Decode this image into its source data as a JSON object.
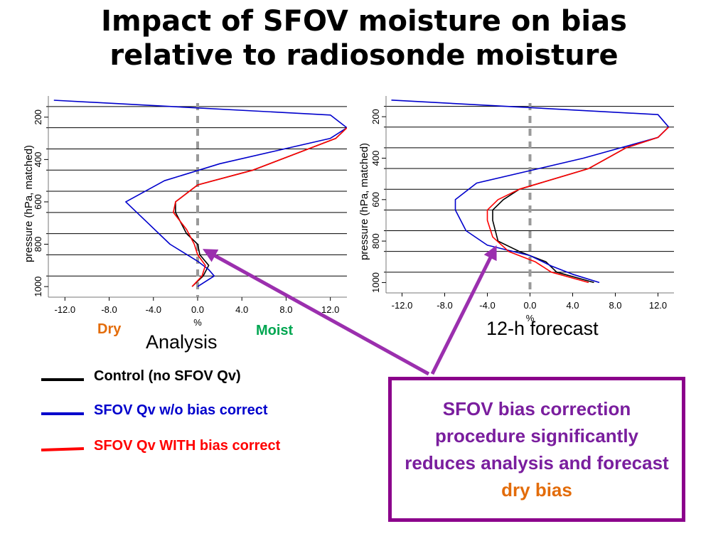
{
  "title": {
    "line1": "Impact of SFOV moisture on bias",
    "line2": "relative to radiosonde moisture"
  },
  "chart_data": [
    {
      "type": "line",
      "title": "Analysis",
      "xlabel": "%",
      "ylabel": "pressure (hPa, matched)",
      "xlim": [
        -13.5,
        13.5
      ],
      "ylim": [
        1050,
        100
      ],
      "x_ticks": [
        "-12.0",
        "-8.0",
        "-4.0",
        "0.0",
        "4.0",
        "8.0",
        "12.0"
      ],
      "y_ticks": [
        "200",
        "400",
        "600",
        "800",
        "1000"
      ],
      "grid": "horizontal lines every 100 hPa",
      "reference_line": 0,
      "annotations": {
        "left": "Dry",
        "right": "Moist"
      },
      "series": [
        {
          "name": "Control  (no SFOV Qv)",
          "color": "#000000",
          "points": [
            [
              13.5,
              250
            ],
            [
              12.5,
              300
            ],
            [
              10,
              350
            ],
            [
              5,
              450
            ],
            [
              0,
              520
            ],
            [
              -2,
              600
            ],
            [
              -2,
              650
            ],
            [
              -1,
              750
            ],
            [
              0,
              800
            ],
            [
              0.2,
              850
            ],
            [
              1,
              900
            ],
            [
              0.5,
              950
            ],
            [
              -0.5,
              1000
            ]
          ]
        },
        {
          "name": "SFOV Qv  w/o bias correct",
          "color": "#0000cc",
          "points": [
            [
              -13,
              120
            ],
            [
              12,
              190
            ],
            [
              13.5,
              250
            ],
            [
              12,
              300
            ],
            [
              2,
              420
            ],
            [
              -3,
              500
            ],
            [
              -6.5,
              600
            ],
            [
              -4.5,
              700
            ],
            [
              -2.5,
              800
            ],
            [
              0,
              880
            ],
            [
              1,
              920
            ],
            [
              1.5,
              950
            ],
            [
              0,
              1000
            ]
          ]
        },
        {
          "name": "SFOV Qv WITH bias correct",
          "color": "#ff0000",
          "points": [
            [
              13.5,
              250
            ],
            [
              12.5,
              300
            ],
            [
              10,
              350
            ],
            [
              5,
              450
            ],
            [
              0,
              520
            ],
            [
              -2,
              600
            ],
            [
              -2.2,
              650
            ],
            [
              -1,
              730
            ],
            [
              -0.3,
              800
            ],
            [
              0,
              850
            ],
            [
              0.7,
              900
            ],
            [
              0.4,
              950
            ],
            [
              -0.5,
              1000
            ]
          ]
        }
      ]
    },
    {
      "type": "line",
      "title": "12-h forecast",
      "xlabel": "%",
      "ylabel": "pressure (hPa, matched)",
      "xlim": [
        -13.5,
        13.5
      ],
      "ylim": [
        1050,
        100
      ],
      "x_ticks": [
        "-12.0",
        "-8.0",
        "-4.0",
        "0.0",
        "4.0",
        "8.0",
        "12.0"
      ],
      "y_ticks": [
        "200",
        "400",
        "600",
        "800",
        "1000"
      ],
      "grid": "horizontal lines every 100 hPa",
      "reference_line": 0,
      "series": [
        {
          "name": "Control  (no SFOV Qv)",
          "color": "#000000",
          "points": [
            [
              13,
              250
            ],
            [
              12,
              300
            ],
            [
              9,
              350
            ],
            [
              5.5,
              450
            ],
            [
              -1,
              550
            ],
            [
              -2.5,
              600
            ],
            [
              -3.5,
              650
            ],
            [
              -3.5,
              700
            ],
            [
              -3,
              800
            ],
            [
              -1,
              850
            ],
            [
              1.5,
              900
            ],
            [
              2.5,
              950
            ],
            [
              6,
              1000
            ]
          ]
        },
        {
          "name": "SFOV Qv  w/o bias correct",
          "color": "#0000cc",
          "points": [
            [
              -13,
              120
            ],
            [
              12,
              190
            ],
            [
              13,
              250
            ],
            [
              12,
              300
            ],
            [
              5,
              400
            ],
            [
              0,
              460
            ],
            [
              -5,
              520
            ],
            [
              -7,
              600
            ],
            [
              -7,
              650
            ],
            [
              -6,
              750
            ],
            [
              -4,
              820
            ],
            [
              0,
              870
            ],
            [
              2,
              920
            ],
            [
              4,
              960
            ],
            [
              6.5,
              1000
            ]
          ]
        },
        {
          "name": "SFOV Qv WITH bias correct",
          "color": "#ff0000",
          "points": [
            [
              13,
              250
            ],
            [
              12,
              300
            ],
            [
              9,
              350
            ],
            [
              5.5,
              450
            ],
            [
              -1,
              550
            ],
            [
              -3,
              600
            ],
            [
              -4,
              650
            ],
            [
              -4,
              700
            ],
            [
              -3.5,
              780
            ],
            [
              -2,
              850
            ],
            [
              0.5,
              900
            ],
            [
              2,
              950
            ],
            [
              5.5,
              1000
            ]
          ]
        }
      ]
    }
  ],
  "legend": [
    {
      "label": "Control  (no SFOV Qv)",
      "color": "#000000"
    },
    {
      "label": "SFOV Qv  w/o bias correct",
      "color": "#0000cc"
    },
    {
      "label": "SFOV Qv WITH bias correct",
      "color": "#ff0000"
    }
  ],
  "labels": {
    "dry": "Dry",
    "moist": "Moist",
    "analysis": "Analysis",
    "forecast": "12-h forecast"
  },
  "callout": {
    "text": "SFOV bias correction procedure significantly reduces analysis and forecast",
    "highlight": "dry bias"
  },
  "colors": {
    "dry": "#e36c0a",
    "moist": "#00a651",
    "callout_border": "#8b008b",
    "arrow": "#9b2fae",
    "zero_line": "#999999"
  }
}
